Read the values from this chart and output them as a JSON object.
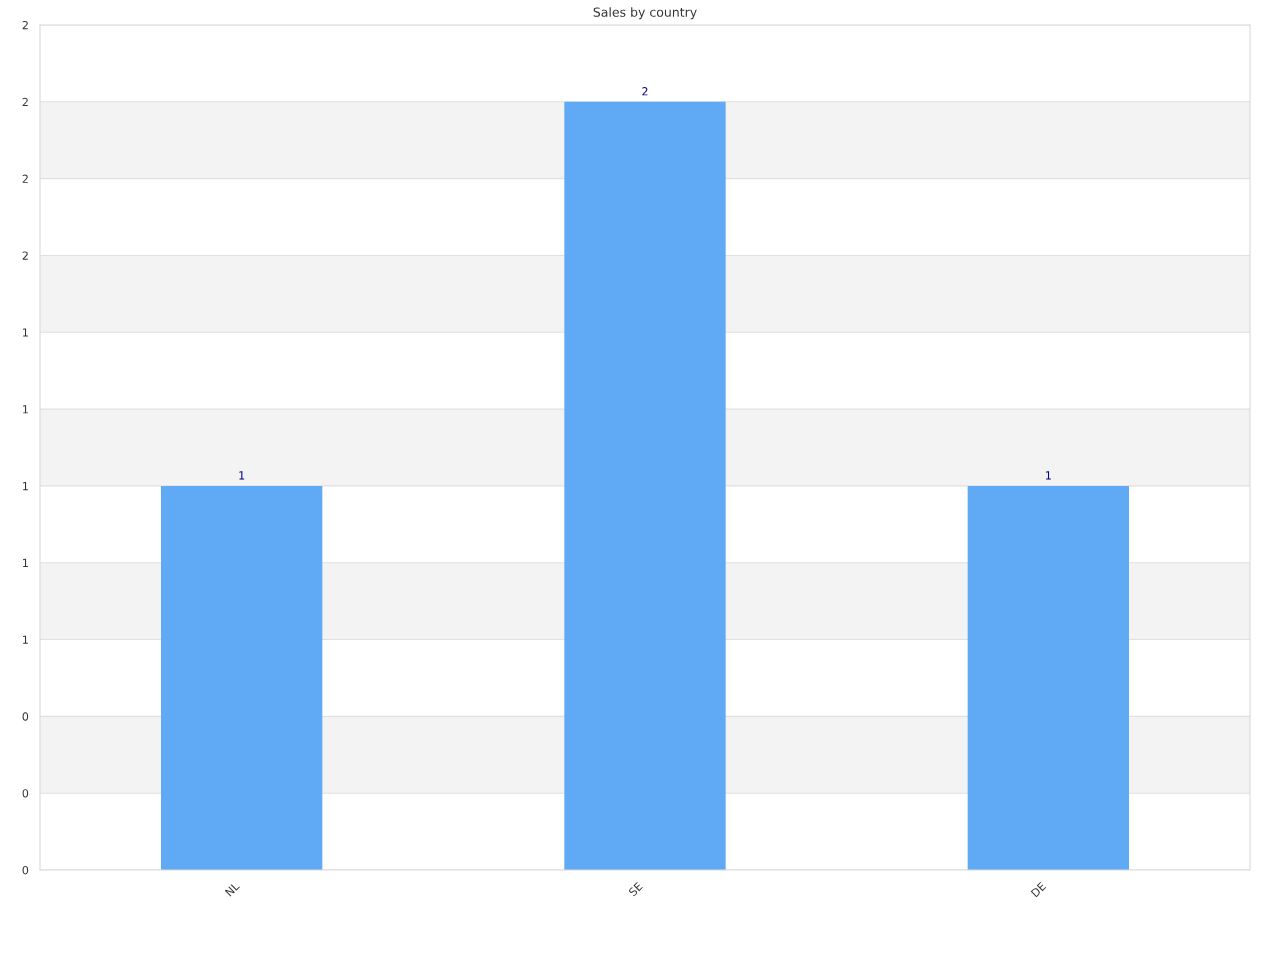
{
  "chart_data": {
    "type": "bar",
    "title": "Sales by country",
    "categories": [
      "NL",
      "SE",
      "DE"
    ],
    "values": [
      1,
      2,
      1
    ],
    "color": "#60a9f5",
    "ylim": [
      0,
      2.2
    ],
    "yticks": [
      {
        "value": 0,
        "label": "0"
      },
      {
        "value": 0.2,
        "label": "0"
      },
      {
        "value": 0.4,
        "label": "0"
      },
      {
        "value": 0.6,
        "label": "1"
      },
      {
        "value": 0.8,
        "label": "1"
      },
      {
        "value": 1.0,
        "label": "1"
      },
      {
        "value": 1.2,
        "label": "1"
      },
      {
        "value": 1.4,
        "label": "1"
      },
      {
        "value": 1.6,
        "label": "2"
      },
      {
        "value": 1.8,
        "label": "2"
      },
      {
        "value": 2.0,
        "label": "2"
      },
      {
        "value": 2.2,
        "label": "2"
      }
    ],
    "grid": "y",
    "data_labels": true
  }
}
